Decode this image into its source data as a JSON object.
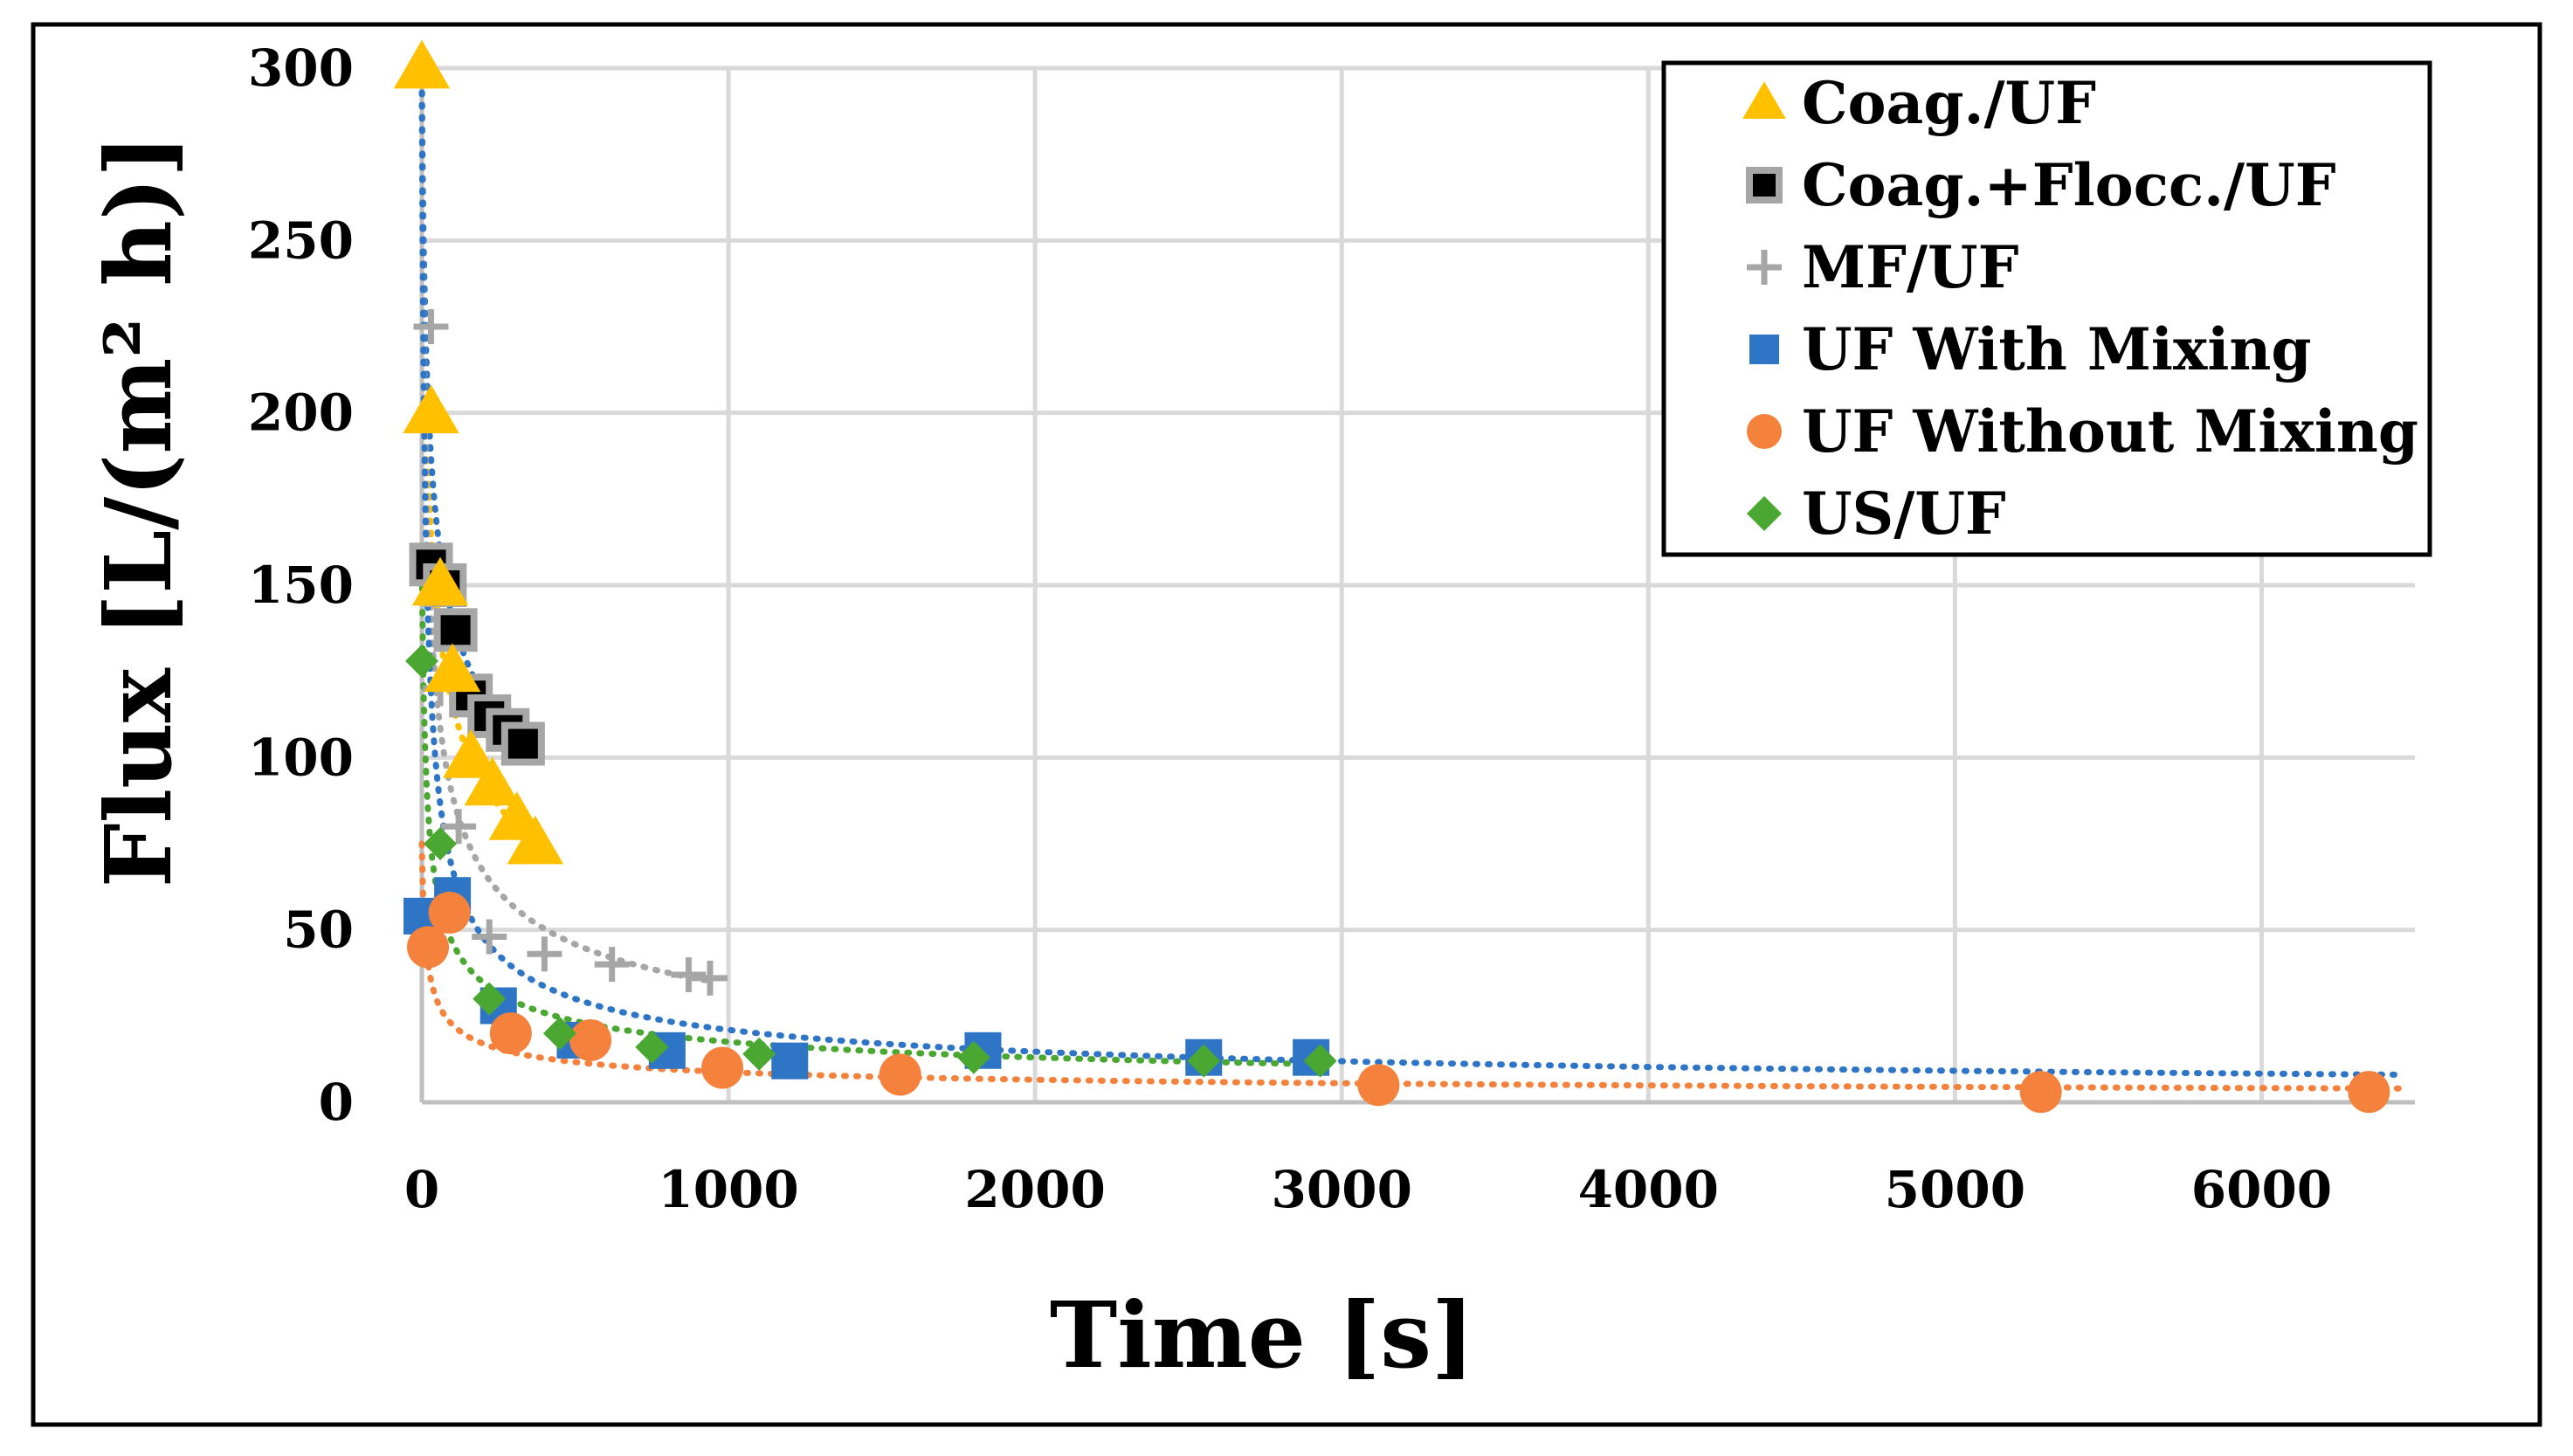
{
  "chart_data": {
    "type": "scatter",
    "title": "",
    "xlabel": "Time [s]",
    "ylabel": "Flux [L/(m² h)]",
    "xlim": [
      0,
      6500
    ],
    "ylim": [
      0,
      300
    ],
    "xticks": [
      0,
      1000,
      2000,
      3000,
      4000,
      5000,
      6000
    ],
    "yticks": [
      0,
      50,
      100,
      150,
      200,
      250,
      300
    ],
    "grid": true,
    "legend_position": "top-right",
    "series": [
      {
        "name": "Coag./UF",
        "marker": "triangle",
        "color": "#FFC000",
        "x": [
          0,
          30,
          60,
          100,
          160,
          230,
          310,
          370
        ],
        "y": [
          300,
          200,
          150,
          125,
          100,
          92,
          82,
          75
        ],
        "trend": {
          "model": "power",
          "x_range": [
            0,
            380
          ],
          "y_start": 300,
          "y_end": 75
        }
      },
      {
        "name": "Coag.+Flocc./UF",
        "marker": "square",
        "color": "#000000",
        "edge": "#A6A6A6",
        "x": [
          30,
          75,
          110,
          160,
          220,
          280,
          330
        ],
        "y": [
          156,
          150,
          137,
          118,
          112,
          108,
          104
        ],
        "trend": {
          "model": "power",
          "x_range": [
            0,
            340
          ],
          "y_start": 300,
          "y_end": 103
        }
      },
      {
        "name": "MF/UF",
        "marker": "plus",
        "color": "#A6A6A6",
        "x": [
          30,
          60,
          120,
          220,
          400,
          620,
          870,
          940
        ],
        "y": [
          225,
          120,
          80,
          48,
          43,
          40,
          37,
          36
        ],
        "trend": {
          "model": "power",
          "x_range": [
            0,
            950
          ],
          "y_start": 300,
          "y_end": 35
        }
      },
      {
        "name": "UF With Mixing",
        "marker": "square",
        "color": "#2E75C6",
        "x": [
          0,
          100,
          250,
          500,
          800,
          1200,
          1830,
          2550,
          2900
        ],
        "y": [
          54,
          60,
          28,
          18,
          15,
          12,
          15,
          13,
          13
        ],
        "trend": {
          "model": "power",
          "x_range": [
            0,
            6450
          ],
          "y_start": 300,
          "y_end": 8
        }
      },
      {
        "name": "UF Without Mixing",
        "marker": "circle",
        "color": "#F4813C",
        "x": [
          20,
          90,
          290,
          550,
          980,
          1560,
          3120,
          5280,
          6350
        ],
        "y": [
          45,
          55,
          20,
          18,
          10,
          8,
          5,
          3,
          3
        ],
        "trend": {
          "model": "power",
          "x_range": [
            0,
            6450
          ],
          "y_start": 75,
          "y_end": 4
        }
      },
      {
        "name": "US/UF",
        "marker": "diamond",
        "color": "#4AA832",
        "x": [
          0,
          60,
          220,
          450,
          750,
          1100,
          1800,
          2550,
          2930
        ],
        "y": [
          128,
          75,
          30,
          20,
          16,
          14,
          13,
          12,
          12
        ],
        "trend": {
          "model": "power",
          "x_range": [
            0,
            2950
          ],
          "y_start": 160,
          "y_end": 11
        }
      }
    ]
  }
}
